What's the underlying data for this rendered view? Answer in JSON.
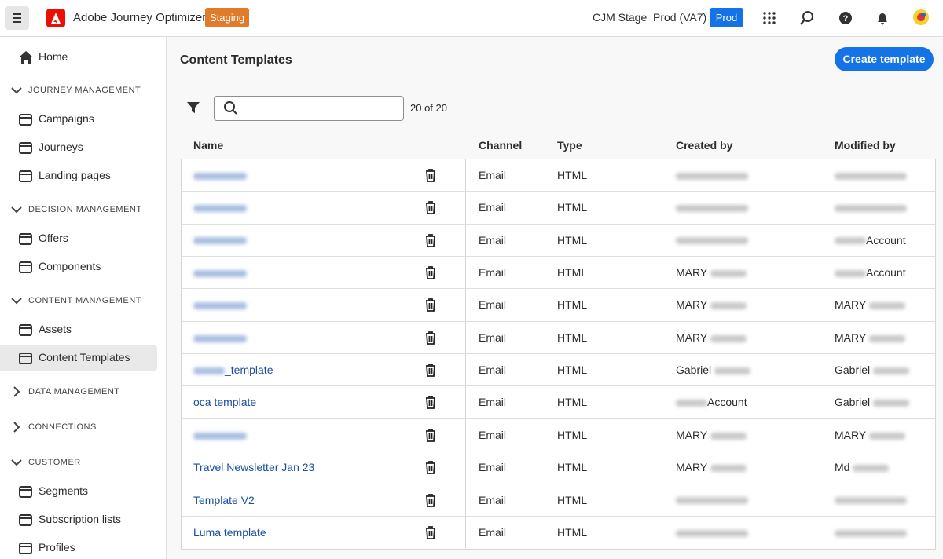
{
  "header": {
    "app_name": "Adobe Journey Optimizer",
    "env_badge": "Staging",
    "org": "CJM Stage",
    "sandbox": "Prod (VA7)",
    "sandbox_badge": "Prod"
  },
  "sidebar": {
    "home": "Home",
    "sections": [
      {
        "title": "JOURNEY MANAGEMENT",
        "expanded": true,
        "items": [
          "Campaigns",
          "Journeys",
          "Landing pages"
        ]
      },
      {
        "title": "DECISION MANAGEMENT",
        "expanded": true,
        "items": [
          "Offers",
          "Components"
        ]
      },
      {
        "title": "CONTENT MANAGEMENT",
        "expanded": true,
        "items": [
          "Assets",
          "Content Templates"
        ]
      },
      {
        "title": "DATA MANAGEMENT",
        "expanded": false,
        "items": []
      },
      {
        "title": "CONNECTIONS",
        "expanded": false,
        "items": []
      },
      {
        "title": "CUSTOMER",
        "expanded": true,
        "items": [
          "Segments",
          "Subscription lists",
          "Profiles"
        ]
      }
    ],
    "selected": "Content Templates"
  },
  "page": {
    "title": "Content Templates",
    "create_button": "Create template",
    "count": "20 of 20"
  },
  "table": {
    "columns": [
      "Name",
      "Channel",
      "Type",
      "Created by",
      "Modified by"
    ],
    "rows": [
      [
        null,
        "Email",
        "HTML",
        null,
        null
      ],
      [
        null,
        "Email",
        "HTML",
        null,
        null
      ],
      [
        null,
        "Email",
        "HTML",
        null,
        "Account"
      ],
      [
        null,
        "Email",
        "HTML",
        "MARY",
        "Account"
      ],
      [
        null,
        "Email",
        "HTML",
        "MARY",
        "MARY"
      ],
      [
        null,
        "Email",
        "HTML",
        "MARY",
        "MARY"
      ],
      [
        "_template",
        "Email",
        "HTML",
        "Gabriel",
        "Gabriel"
      ],
      [
        "oca template",
        "Email",
        "HTML",
        "Account",
        "Gabriel"
      ],
      [
        null,
        "Email",
        "HTML",
        "MARY",
        "MARY"
      ],
      [
        "Travel Newsletter Jan 23",
        "Email",
        "HTML",
        "MARY",
        "Md"
      ],
      [
        "Template V2",
        "Email",
        "HTML",
        null,
        null
      ],
      [
        "Luma template",
        "Email",
        "HTML",
        null,
        null
      ]
    ]
  }
}
